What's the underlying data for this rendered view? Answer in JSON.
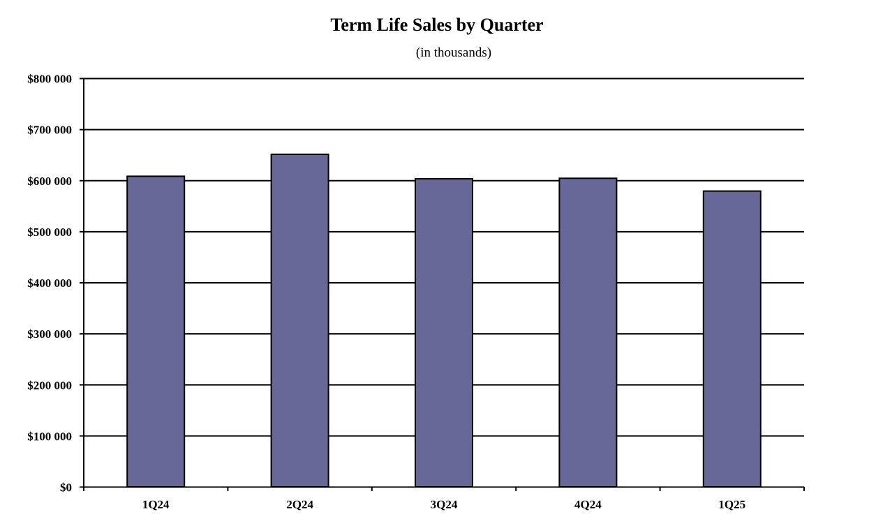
{
  "chart_data": {
    "type": "bar",
    "title": "Term Life Sales by Quarter",
    "subtitle": "(in thousands)",
    "xlabel": "",
    "ylabel": "",
    "categories": [
      "1Q24",
      "2Q24",
      "3Q24",
      "4Q24",
      "1Q25"
    ],
    "values": [
      608000,
      651000,
      603000,
      604000,
      579000
    ],
    "ylim": [
      0,
      800000
    ],
    "y_ticks": [
      0,
      100000,
      200000,
      300000,
      400000,
      500000,
      600000,
      700000,
      800000
    ],
    "y_tick_labels": [
      "$0",
      "$100 000",
      "$200 000",
      "$300 000",
      "$400 000",
      "$500 000",
      "$600 000",
      "$700 000",
      "$800 000"
    ],
    "grid": true,
    "legend": "none",
    "colors": {
      "bar_fill": "#676798",
      "bar_stroke": "#000000",
      "grid": "#000000",
      "axis": "#000000",
      "background": "#ffffff"
    }
  }
}
